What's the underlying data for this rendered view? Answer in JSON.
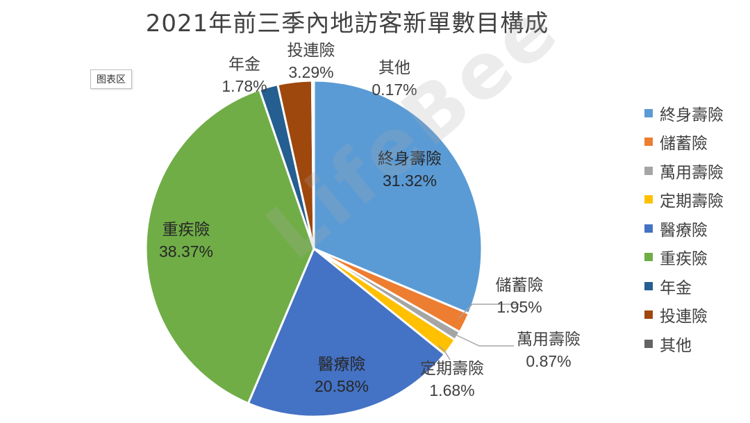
{
  "chart_data": {
    "type": "pie",
    "title": "2021年前三季內地訪客新單數目構成",
    "slices": [
      {
        "name": "終身壽險",
        "value": 31.32,
        "label": "31.32%",
        "color": "#5B9BD5"
      },
      {
        "name": "儲蓄險",
        "value": 1.95,
        "label": "1.95%",
        "color": "#ED7D31"
      },
      {
        "name": "萬用壽險",
        "value": 0.87,
        "label": "0.87%",
        "color": "#A5A5A5"
      },
      {
        "name": "定期壽險",
        "value": 1.68,
        "label": "1.68%",
        "color": "#FFC000"
      },
      {
        "name": "醫療險",
        "value": 20.58,
        "label": "20.58%",
        "color": "#4472C4"
      },
      {
        "name": "重疾險",
        "value": 38.37,
        "label": "38.37%",
        "color": "#70AD47"
      },
      {
        "name": "年金",
        "value": 1.78,
        "label": "1.78%",
        "color": "#255E91"
      },
      {
        "name": "投連險",
        "value": 3.29,
        "label": "3.29%",
        "color": "#9E480E"
      },
      {
        "name": "其他",
        "value": 0.17,
        "label": "0.17%",
        "color": "#636363"
      }
    ],
    "legend_position": "right"
  },
  "ui": {
    "chart_area_tag": "图表区",
    "watermark": "LifeBee"
  }
}
